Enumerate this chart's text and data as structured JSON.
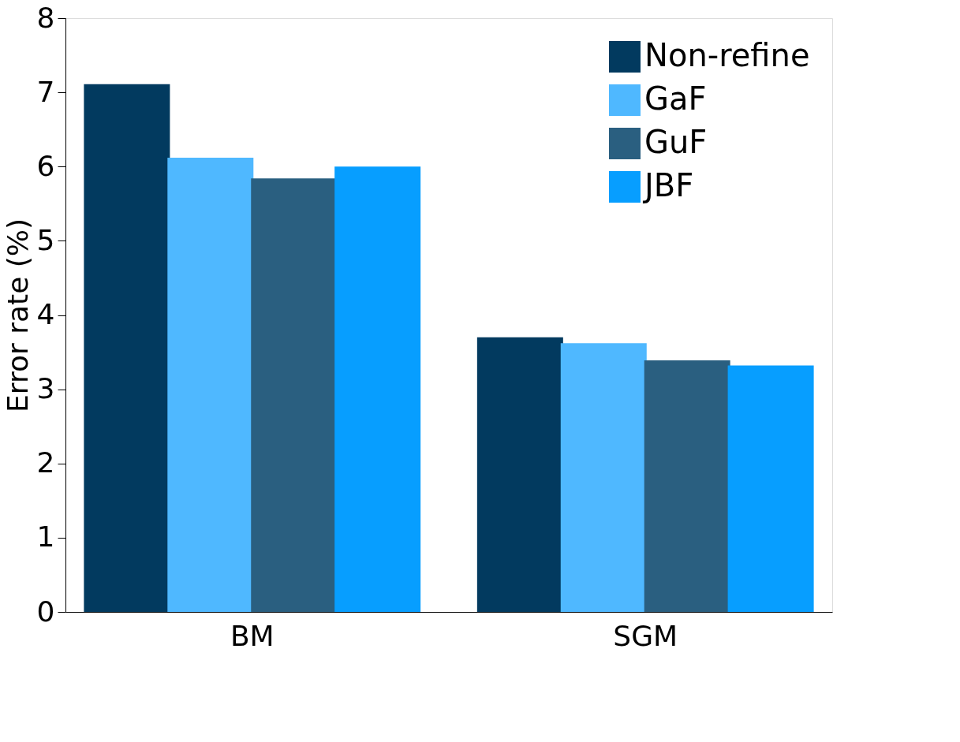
{
  "chart_data": {
    "type": "bar",
    "ylabel": "Error rate (%)",
    "categories": [
      "BM",
      "SGM"
    ],
    "series": [
      {
        "name": "Non-refine",
        "color": "#023a5f",
        "values": [
          7.11,
          3.7
        ]
      },
      {
        "name": "GaF",
        "color": "#4fb8ff",
        "values": [
          6.12,
          3.62
        ]
      },
      {
        "name": "GuF",
        "color": "#2a5f80",
        "values": [
          5.84,
          3.39
        ]
      },
      {
        "name": "JBF",
        "color": "#079eff",
        "values": [
          6.0,
          3.32
        ]
      }
    ],
    "ylim": [
      0,
      8
    ],
    "yticks": [
      0,
      1,
      2,
      3,
      4,
      5,
      6,
      7,
      8
    ],
    "grid": false,
    "legend": "top right"
  }
}
